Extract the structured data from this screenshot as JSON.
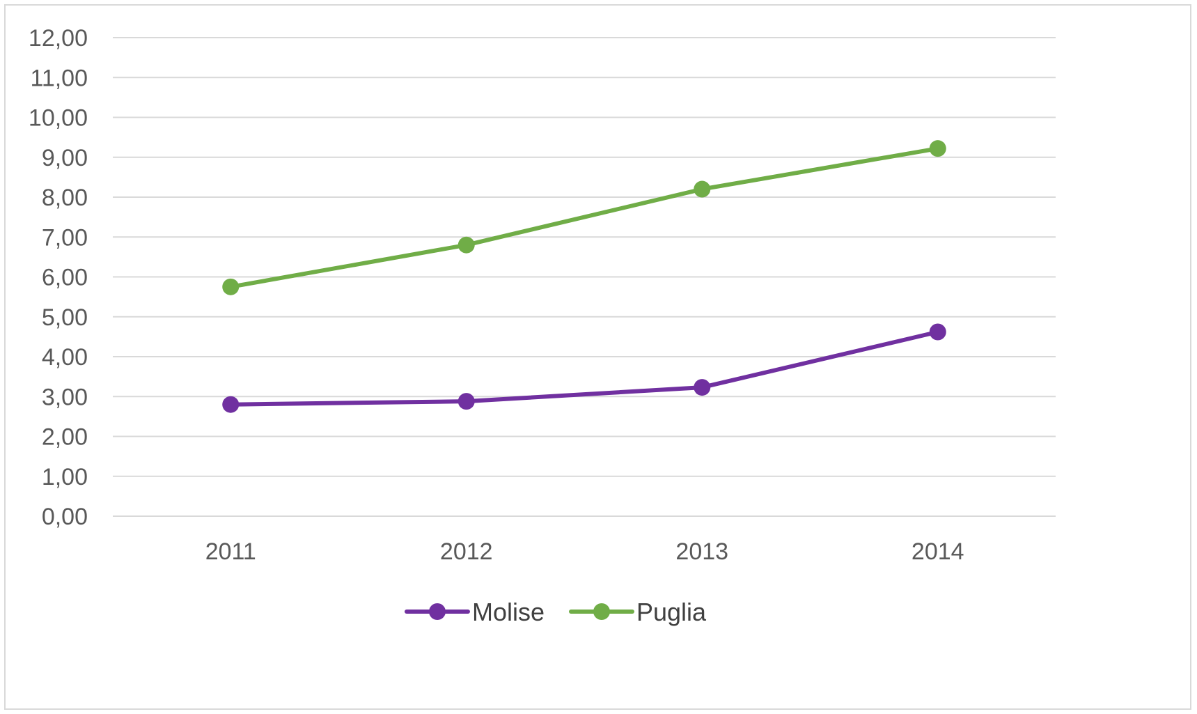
{
  "chart_data": {
    "type": "line",
    "categories": [
      "2011",
      "2012",
      "2013",
      "2014"
    ],
    "y_tick_labels": [
      "0,00",
      "1,00",
      "2,00",
      "3,00",
      "4,00",
      "5,00",
      "6,00",
      "7,00",
      "8,00",
      "9,00",
      "10,00",
      "11,00",
      "12,00"
    ],
    "ylim": [
      0,
      12
    ],
    "y_step": 1,
    "grid": true,
    "legend_position": "bottom",
    "series": [
      {
        "name": "Molise",
        "values": [
          2.8,
          2.88,
          3.23,
          4.62
        ],
        "color": "#7030a0"
      },
      {
        "name": "Puglia",
        "values": [
          5.75,
          6.8,
          8.2,
          9.22
        ],
        "color": "#70ad47"
      }
    ],
    "title": "",
    "xlabel": "",
    "ylabel": ""
  }
}
